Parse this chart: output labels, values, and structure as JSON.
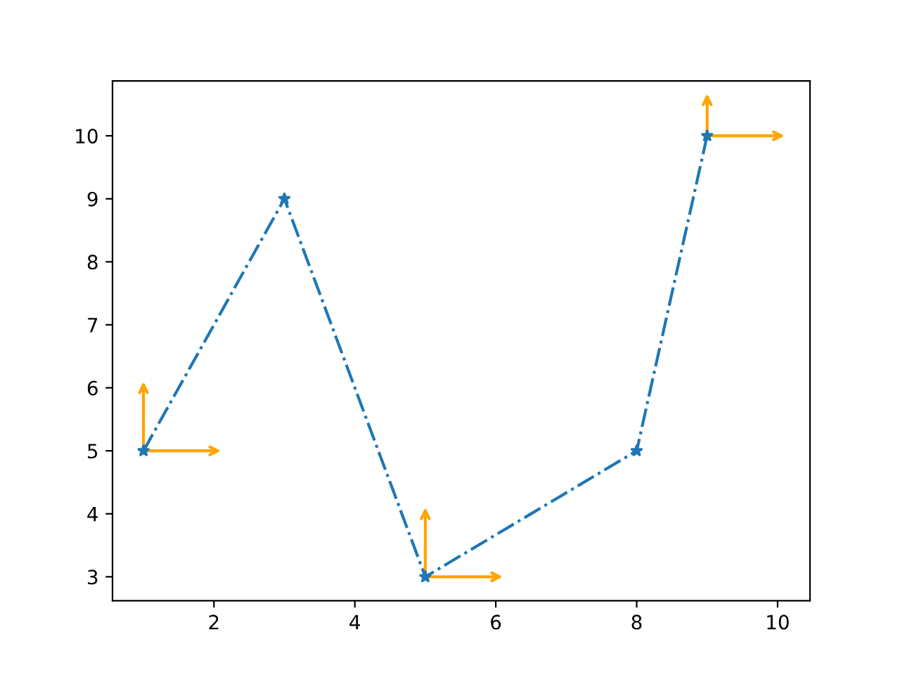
{
  "chart_data": {
    "type": "line",
    "x": [
      1,
      3,
      5,
      8,
      9
    ],
    "series": [
      {
        "color": "#1f77b4",
        "values": [
          5,
          9,
          3,
          5,
          10
        ]
      }
    ],
    "marker": "star",
    "line_style": "dashdot",
    "grid": false,
    "xlim": [
      0.56,
      10.46
    ],
    "ylim": [
      2.62,
      10.87
    ],
    "xticks": [
      2,
      4,
      6,
      8,
      10
    ],
    "yticks": [
      3,
      4,
      5,
      6,
      7,
      8,
      9,
      10
    ]
  }
}
